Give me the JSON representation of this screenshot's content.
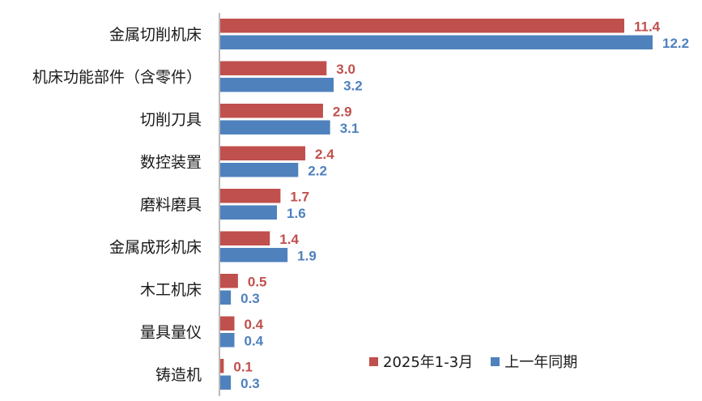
{
  "chart_data": {
    "type": "bar",
    "orientation": "horizontal",
    "categories": [
      "金属切削机床",
      "机床功能部件（含零件）",
      "切削刀具",
      "数控装置",
      "磨料磨具",
      "金属成形机床",
      "木工机床",
      "量具量仪",
      "铸造机"
    ],
    "series": [
      {
        "name": "2025年1-3月",
        "color": "#c0504d",
        "values": [
          11.4,
          3.0,
          2.9,
          2.4,
          1.7,
          1.4,
          0.5,
          0.4,
          0.1
        ]
      },
      {
        "name": "上一年同期",
        "color": "#4f81bd",
        "values": [
          12.2,
          3.2,
          3.1,
          2.2,
          1.6,
          1.9,
          0.3,
          0.4,
          0.3
        ]
      }
    ],
    "value_labels": [
      [
        "11.4",
        "3.0",
        "2.9",
        "2.4",
        "1.7",
        "1.4",
        "0.5",
        "0.4",
        "0.1"
      ],
      [
        "12.2",
        "3.2",
        "3.1",
        "2.2",
        "1.6",
        "1.9",
        "0.3",
        "0.4",
        "0.3"
      ]
    ],
    "xlim": [
      0,
      12.2
    ],
    "grid": false,
    "legend_position": "bottom-right"
  }
}
